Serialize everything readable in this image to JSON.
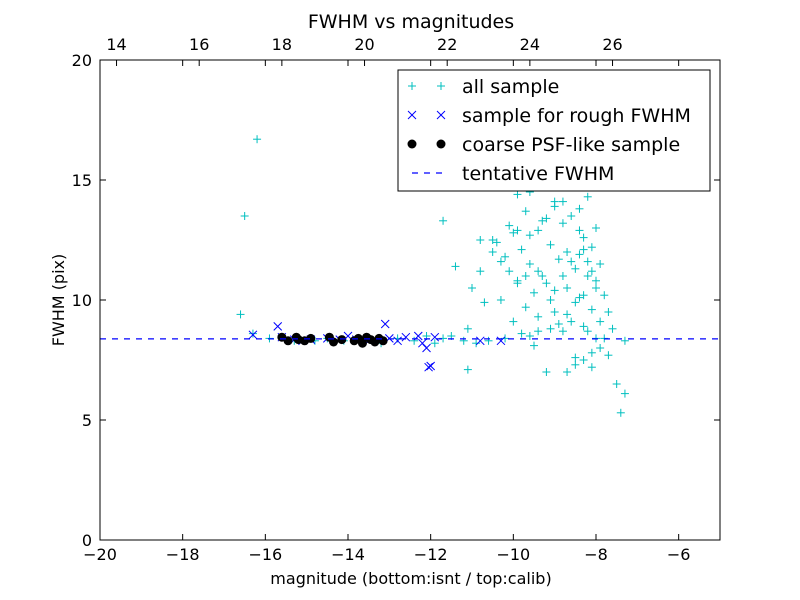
{
  "chart_data": {
    "type": "scatter",
    "title": "FWHM vs magnitudes",
    "xlabel": "magnitude (bottom:isnt / top:calib)",
    "ylabel": "FWHM (pix)",
    "xlim": [
      -20,
      -5
    ],
    "ylim": [
      0,
      20
    ],
    "x_ticks": [
      -20,
      -18,
      -16,
      -14,
      -12,
      -10,
      -8,
      -6
    ],
    "x_tick_labels": [
      "−20",
      "−18",
      "−16",
      "−14",
      "−12",
      "−10",
      "−8",
      "−6"
    ],
    "y_ticks": [
      0,
      5,
      10,
      15,
      20
    ],
    "y_tick_labels": [
      "0",
      "5",
      "10",
      "15",
      "20"
    ],
    "top_axis": {
      "ticks": [
        14,
        16,
        18,
        20,
        22,
        24,
        26
      ],
      "tick_labels": [
        "14",
        "16",
        "18",
        "20",
        "22",
        "24",
        "26"
      ],
      "offset": 33.6
    },
    "grid": false,
    "legend_position": "top-right",
    "series": [
      {
        "name": "all sample",
        "marker": "plus",
        "color": "#00bfbf",
        "points": [
          [
            -16.6,
            9.4
          ],
          [
            -16.5,
            13.5
          ],
          [
            -16.3,
            8.6
          ],
          [
            -16.2,
            16.7
          ],
          [
            -15.9,
            8.4
          ],
          [
            -15.3,
            8.3
          ],
          [
            -14.8,
            8.3
          ],
          [
            -14.5,
            8.4
          ],
          [
            -14.1,
            8.3
          ],
          [
            -13.7,
            8.3
          ],
          [
            -13.2,
            8.2
          ],
          [
            -12.8,
            8.4
          ],
          [
            -12.4,
            8.3
          ],
          [
            -12.1,
            8.5
          ],
          [
            -11.9,
            8.2
          ],
          [
            -11.7,
            8.4
          ],
          [
            -11.7,
            13.3
          ],
          [
            -11.5,
            8.5
          ],
          [
            -11.4,
            11.4
          ],
          [
            -11.2,
            8.3
          ],
          [
            -11.1,
            7.1
          ],
          [
            -11.1,
            8.8
          ],
          [
            -11.0,
            10.5
          ],
          [
            -10.9,
            8.2
          ],
          [
            -10.8,
            11.2
          ],
          [
            -10.8,
            12.5
          ],
          [
            -10.7,
            9.9
          ],
          [
            -10.6,
            8.3
          ],
          [
            -10.5,
            12.0
          ],
          [
            -10.4,
            12.4
          ],
          [
            -10.3,
            11.6
          ],
          [
            -10.3,
            10.0
          ],
          [
            -10.2,
            8.4
          ],
          [
            -10.1,
            13.1
          ],
          [
            -10.1,
            11.2
          ],
          [
            -10.0,
            9.1
          ],
          [
            -10.0,
            12.8
          ],
          [
            -9.9,
            14.4
          ],
          [
            -9.9,
            10.7
          ],
          [
            -9.8,
            12.1
          ],
          [
            -9.8,
            8.6
          ],
          [
            -9.7,
            13.7
          ],
          [
            -9.7,
            9.7
          ],
          [
            -9.6,
            11.5
          ],
          [
            -9.6,
            14.5
          ],
          [
            -9.5,
            10.3
          ],
          [
            -9.5,
            8.1
          ],
          [
            -9.4,
            12.9
          ],
          [
            -9.4,
            9.3
          ],
          [
            -9.3,
            15.0
          ],
          [
            -9.3,
            11.0
          ],
          [
            -9.2,
            13.4
          ],
          [
            -9.2,
            7.0
          ],
          [
            -9.1,
            10.0
          ],
          [
            -9.1,
            12.3
          ],
          [
            -9.0,
            14.1
          ],
          [
            -9.0,
            9.5
          ],
          [
            -8.9,
            11.7
          ],
          [
            -8.9,
            15.5
          ],
          [
            -8.8,
            8.7
          ],
          [
            -8.8,
            13.2
          ],
          [
            -8.7,
            10.5
          ],
          [
            -8.7,
            12.0
          ],
          [
            -8.6,
            14.8
          ],
          [
            -8.6,
            9.1
          ],
          [
            -8.5,
            11.3
          ],
          [
            -8.5,
            7.6
          ],
          [
            -8.4,
            13.8
          ],
          [
            -8.4,
            10.1
          ],
          [
            -8.3,
            12.6
          ],
          [
            -8.3,
            8.9
          ],
          [
            -8.2,
            14.3
          ],
          [
            -8.2,
            11.0
          ],
          [
            -8.1,
            9.6
          ],
          [
            -8.1,
            12.2
          ],
          [
            -8.1,
            7.2
          ],
          [
            -8.0,
            10.8
          ],
          [
            -8.0,
            13.0
          ],
          [
            -7.9,
            9.1
          ],
          [
            -7.9,
            11.5
          ],
          [
            -7.8,
            8.4
          ],
          [
            -7.8,
            10.2
          ],
          [
            -7.7,
            9.5
          ],
          [
            -7.7,
            7.7
          ],
          [
            -7.6,
            8.8
          ],
          [
            -7.5,
            6.5
          ],
          [
            -7.4,
            5.3
          ],
          [
            -7.3,
            6.1
          ],
          [
            -7.3,
            8.3
          ],
          [
            -10.5,
            12.5
          ],
          [
            -10.2,
            11.8
          ],
          [
            -9.9,
            12.9
          ],
          [
            -9.6,
            12.7
          ],
          [
            -9.3,
            13.3
          ],
          [
            -9.0,
            13.9
          ],
          [
            -8.8,
            14.1
          ],
          [
            -8.6,
            13.5
          ],
          [
            -8.4,
            12.9
          ],
          [
            -8.3,
            12.1
          ],
          [
            -8.2,
            11.6
          ],
          [
            -8.1,
            11.2
          ],
          [
            -8.0,
            10.5
          ],
          [
            -8.3,
            10.2
          ],
          [
            -8.5,
            9.9
          ],
          [
            -8.7,
            9.4
          ],
          [
            -8.9,
            9.0
          ],
          [
            -9.1,
            8.8
          ],
          [
            -9.4,
            8.7
          ],
          [
            -9.6,
            8.5
          ],
          [
            -8.2,
            8.7
          ],
          [
            -8.0,
            8.4
          ],
          [
            -7.9,
            8.0
          ],
          [
            -8.1,
            7.8
          ],
          [
            -8.3,
            7.5
          ],
          [
            -8.5,
            7.3
          ],
          [
            -8.7,
            7.0
          ],
          [
            -8.4,
            11.9
          ],
          [
            -8.6,
            11.6
          ],
          [
            -8.8,
            11.0
          ],
          [
            -9.0,
            10.4
          ],
          [
            -9.2,
            10.7
          ],
          [
            -9.4,
            11.2
          ],
          [
            -9.7,
            11.0
          ],
          [
            -9.9,
            10.8
          ]
        ]
      },
      {
        "name": "sample for rough FWHM",
        "marker": "x",
        "color": "#0000ff",
        "points": [
          [
            -16.3,
            8.55
          ],
          [
            -15.7,
            8.9
          ],
          [
            -15.6,
            8.45
          ],
          [
            -15.3,
            8.35
          ],
          [
            -15.1,
            8.3
          ],
          [
            -14.9,
            8.35
          ],
          [
            -14.5,
            8.4
          ],
          [
            -14.2,
            8.35
          ],
          [
            -14.0,
            8.5
          ],
          [
            -13.8,
            8.35
          ],
          [
            -13.5,
            8.3
          ],
          [
            -13.1,
            9.0
          ],
          [
            -13.0,
            8.4
          ],
          [
            -12.8,
            8.3
          ],
          [
            -12.6,
            8.45
          ],
          [
            -12.3,
            8.5
          ],
          [
            -12.2,
            8.2
          ],
          [
            -12.1,
            8.0
          ],
          [
            -12.05,
            7.2
          ],
          [
            -12.0,
            7.25
          ],
          [
            -11.9,
            8.45
          ],
          [
            -10.8,
            8.3
          ],
          [
            -10.3,
            8.3
          ]
        ]
      },
      {
        "name": "coarse PSF-like sample",
        "marker": "circle",
        "color": "#000000",
        "points": [
          [
            -15.6,
            8.45
          ],
          [
            -15.45,
            8.3
          ],
          [
            -15.25,
            8.45
          ],
          [
            -15.2,
            8.35
          ],
          [
            -15.05,
            8.3
          ],
          [
            -14.9,
            8.4
          ],
          [
            -14.45,
            8.45
          ],
          [
            -14.35,
            8.25
          ],
          [
            -14.15,
            8.35
          ],
          [
            -13.85,
            8.3
          ],
          [
            -13.75,
            8.4
          ],
          [
            -13.65,
            8.2
          ],
          [
            -13.55,
            8.45
          ],
          [
            -13.45,
            8.35
          ],
          [
            -13.35,
            8.25
          ],
          [
            -13.25,
            8.4
          ],
          [
            -13.15,
            8.3
          ]
        ]
      },
      {
        "name": "tentative FWHM",
        "marker": "dashed-line",
        "color": "#0000ff",
        "y": 8.38
      }
    ]
  }
}
